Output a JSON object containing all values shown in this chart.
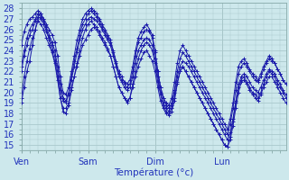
{
  "xlabel": "Température (°c)",
  "xlim": [
    0,
    95
  ],
  "ylim": [
    14.5,
    28.5
  ],
  "yticks": [
    15,
    16,
    17,
    18,
    19,
    20,
    21,
    22,
    23,
    24,
    25,
    26,
    27,
    28
  ],
  "xtick_positions": [
    0,
    24,
    48,
    72
  ],
  "xtick_labels": [
    "Ven",
    "Sam",
    "Dim",
    "Lun"
  ],
  "bg_color": "#cde8ec",
  "grid_color": "#aac8cc",
  "line_color": "#1a1aaa",
  "series": [
    [
      19.0,
      20.5,
      22.0,
      23.0,
      24.5,
      26.0,
      27.2,
      27.5,
      27.0,
      26.0,
      25.0,
      24.0,
      23.0,
      21.5,
      19.5,
      18.5,
      18.5,
      19.0,
      20.5,
      21.5,
      22.5,
      23.5,
      24.5,
      25.0,
      25.5,
      26.0,
      26.2,
      26.0,
      25.5,
      25.0,
      24.5,
      24.0,
      23.5,
      22.5,
      21.5,
      20.5,
      20.0,
      19.5,
      19.2,
      19.5,
      20.5,
      21.5,
      22.5,
      23.2,
      23.8,
      24.0,
      23.5,
      23.0,
      22.0,
      20.5,
      19.2,
      18.5,
      18.0,
      18.0,
      18.5,
      19.5,
      21.0,
      22.0,
      22.5,
      22.0,
      21.5,
      21.0,
      20.5,
      20.0,
      19.5,
      19.0,
      18.5,
      18.0,
      17.5,
      17.0,
      16.5,
      16.0,
      15.5,
      15.0,
      14.8,
      15.5,
      16.8,
      18.5,
      20.0,
      21.0,
      21.2,
      20.8,
      20.2,
      19.8,
      19.5,
      19.2,
      19.8,
      20.5,
      21.0,
      21.5,
      21.5,
      21.0,
      20.5,
      20.0,
      19.5,
      19.0
    ],
    [
      22.0,
      23.5,
      24.5,
      25.5,
      26.0,
      26.8,
      27.2,
      27.0,
      26.5,
      25.8,
      25.2,
      24.5,
      23.5,
      22.0,
      20.2,
      19.2,
      19.0,
      19.8,
      21.2,
      22.5,
      23.8,
      25.0,
      26.0,
      26.5,
      27.0,
      27.2,
      27.0,
      26.8,
      26.5,
      26.0,
      25.5,
      25.0,
      24.5,
      23.5,
      22.5,
      21.5,
      21.0,
      20.5,
      20.2,
      20.5,
      21.5,
      22.8,
      24.0,
      24.5,
      25.0,
      25.2,
      25.0,
      24.5,
      23.2,
      21.5,
      20.0,
      19.0,
      18.5,
      18.2,
      18.8,
      20.0,
      21.5,
      22.5,
      23.0,
      22.8,
      22.5,
      22.0,
      21.5,
      21.0,
      20.5,
      20.0,
      19.5,
      19.0,
      18.5,
      18.0,
      17.5,
      17.0,
      16.5,
      16.0,
      15.5,
      16.2,
      17.5,
      19.2,
      20.8,
      21.5,
      21.8,
      21.5,
      21.0,
      20.5,
      20.2,
      20.0,
      20.5,
      21.2,
      21.8,
      22.2,
      22.0,
      21.8,
      21.2,
      20.8,
      20.2,
      19.8
    ],
    [
      24.5,
      25.8,
      26.5,
      27.0,
      27.2,
      27.5,
      27.8,
      27.5,
      27.0,
      26.5,
      26.0,
      25.5,
      24.8,
      23.5,
      21.5,
      20.0,
      19.8,
      20.5,
      22.0,
      23.5,
      25.0,
      26.0,
      27.0,
      27.5,
      27.8,
      28.0,
      27.8,
      27.5,
      27.0,
      26.5,
      26.0,
      25.5,
      25.0,
      24.0,
      23.0,
      22.0,
      21.5,
      21.0,
      20.8,
      21.2,
      22.5,
      24.0,
      25.2,
      25.8,
      26.2,
      26.5,
      26.0,
      25.5,
      24.0,
      22.0,
      20.5,
      19.5,
      19.0,
      18.8,
      19.5,
      21.0,
      22.8,
      24.0,
      24.5,
      24.0,
      23.5,
      23.0,
      22.5,
      22.0,
      21.5,
      21.0,
      20.5,
      20.0,
      19.5,
      19.0,
      18.5,
      18.0,
      17.5,
      17.0,
      16.5,
      17.5,
      19.0,
      21.0,
      22.5,
      23.0,
      23.2,
      22.8,
      22.2,
      21.8,
      21.5,
      21.2,
      21.8,
      22.5,
      23.0,
      23.5,
      23.2,
      22.8,
      22.2,
      21.8,
      21.2,
      20.8
    ],
    [
      19.5,
      21.5,
      23.0,
      24.2,
      25.2,
      26.0,
      26.8,
      26.5,
      26.0,
      25.2,
      24.5,
      23.8,
      22.8,
      21.2,
      19.5,
      18.2,
      18.0,
      18.8,
      20.2,
      21.5,
      22.8,
      24.0,
      25.2,
      26.0,
      26.5,
      26.8,
      26.5,
      26.2,
      25.8,
      25.2,
      24.8,
      24.2,
      23.5,
      22.5,
      21.5,
      20.5,
      20.0,
      19.5,
      19.0,
      19.5,
      20.8,
      22.0,
      23.2,
      24.0,
      24.5,
      24.8,
      24.5,
      24.0,
      22.8,
      21.0,
      19.8,
      18.8,
      18.2,
      17.8,
      18.2,
      19.2,
      20.8,
      22.0,
      22.5,
      22.0,
      21.5,
      21.0,
      20.5,
      20.0,
      19.5,
      19.0,
      18.5,
      18.0,
      17.5,
      17.0,
      16.5,
      16.0,
      15.5,
      15.0,
      14.8,
      15.8,
      17.2,
      19.0,
      20.5,
      21.2,
      21.5,
      21.0,
      20.5,
      20.0,
      19.8,
      19.5,
      20.0,
      20.8,
      21.5,
      22.0,
      21.8,
      21.5,
      20.8,
      20.5,
      20.0,
      19.5
    ],
    [
      22.5,
      24.0,
      25.2,
      26.0,
      26.5,
      27.0,
      27.5,
      27.2,
      26.8,
      26.2,
      25.5,
      24.8,
      24.0,
      22.5,
      20.8,
      19.5,
      19.2,
      20.0,
      21.5,
      23.0,
      24.2,
      25.5,
      26.5,
      27.0,
      27.5,
      27.8,
      27.5,
      27.2,
      26.8,
      26.2,
      25.8,
      25.2,
      24.8,
      23.8,
      22.8,
      21.8,
      21.2,
      20.8,
      20.5,
      20.8,
      22.0,
      23.5,
      24.8,
      25.2,
      25.8,
      26.0,
      25.8,
      25.2,
      23.8,
      22.0,
      20.5,
      19.5,
      18.8,
      18.5,
      19.0,
      20.2,
      22.0,
      23.2,
      23.8,
      23.5,
      23.0,
      22.5,
      22.0,
      21.5,
      21.0,
      20.5,
      20.0,
      19.5,
      19.0,
      18.5,
      18.0,
      17.5,
      17.0,
      16.5,
      16.0,
      17.0,
      18.5,
      20.2,
      21.8,
      22.5,
      22.8,
      22.5,
      22.0,
      21.5,
      21.2,
      21.0,
      21.5,
      22.2,
      22.8,
      23.2,
      23.0,
      22.8,
      22.2,
      21.8,
      21.2,
      20.8
    ]
  ]
}
